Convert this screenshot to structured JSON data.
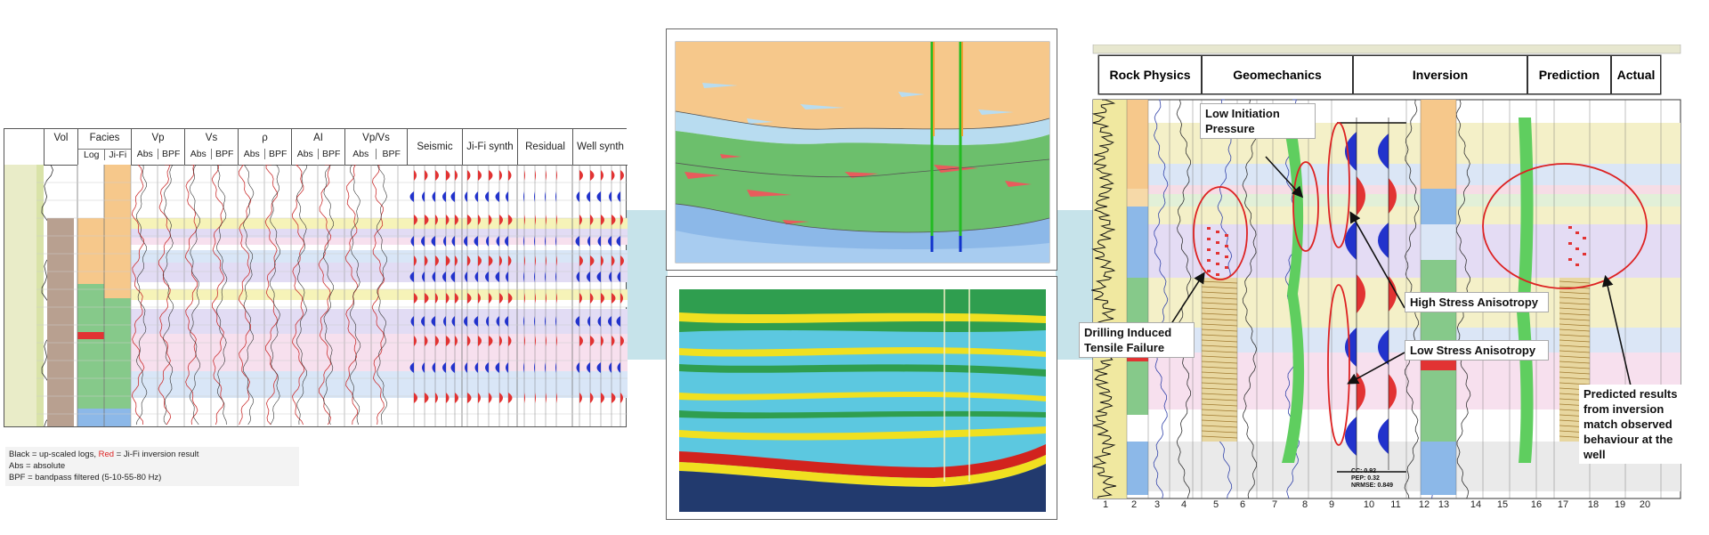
{
  "left_panel": {
    "header": {
      "vol": "Vol",
      "facies": {
        "title": "Facies",
        "sub": [
          "Log",
          "Ji-Fi"
        ]
      },
      "vp": {
        "title": "Vp",
        "sub": [
          "Abs",
          "BPF"
        ]
      },
      "vs": {
        "title": "Vs",
        "sub": [
          "Abs",
          "BPF"
        ]
      },
      "rho": {
        "title": "ρ",
        "sub": [
          "Abs",
          "BPF"
        ]
      },
      "ai": {
        "title": "AI",
        "sub": [
          "Abs",
          "BPF"
        ]
      },
      "vpvs": {
        "title": "Vp/Vs",
        "sub": [
          "Abs",
          "BPF"
        ]
      },
      "seismic": "Seismic",
      "jifi_synth": "Ji-Fi synth",
      "residual": "Residual",
      "well_synth": "Well synth"
    },
    "caption": {
      "line1_black": "Black = up-scaled logs, ",
      "line1_red": "Red",
      "line1_rest": " = Ji-Fi inversion result",
      "line2": "Abs = absolute",
      "line3": "BPF = bandpass filtered (5-10-55-80 Hz)"
    },
    "colors": {
      "band_yellow": "#f6f3b8",
      "band_purple": "#e2dcf4",
      "band_pink": "#f7e0ee",
      "band_blue": "#d9e6f7",
      "red_trace": "#cc3333",
      "blue_wiggle": "#2233cc",
      "red_wiggle": "#e23333"
    }
  },
  "middle_panels": {
    "top": {
      "description_colors": {
        "orange": "#f6c88b",
        "green": "#6cbf6c",
        "blue": "#8cb8e8",
        "light_blue": "#b8dcf0",
        "red": "#e85c5c"
      }
    },
    "bottom": {
      "description_colors": {
        "dark_blue": "#223a6e",
        "cyan": "#5cc8e0",
        "green": "#2f9e4f",
        "yellow": "#f0e020",
        "red": "#d2231e"
      }
    }
  },
  "right_panel": {
    "headers": [
      "Rock Physics",
      "Geomechanics",
      "Inversion",
      "Prediction",
      "Actual"
    ],
    "annotations": {
      "low_initiation": "Low Initiation Pressure",
      "high_stress": "High Stress Anisotropy",
      "low_stress": "Low Stress Anisotropy",
      "drilling": "Drilling Induced Tensile Failure",
      "predicted": "Predicted results from inversion match observed behaviour at the well"
    },
    "stats": [
      "CC: 0.92",
      "PEP: 0.32",
      "NRMSE: 0.849"
    ],
    "track_numbers": [
      "1",
      "2",
      "3",
      "4",
      "5",
      "6",
      "7",
      "8",
      "9",
      "10",
      "11",
      "12",
      "13",
      "14",
      "15",
      "16",
      "17",
      "18",
      "19",
      "20"
    ],
    "colors": {
      "ellipse": "#dd2222",
      "arrow": "#111111"
    }
  }
}
